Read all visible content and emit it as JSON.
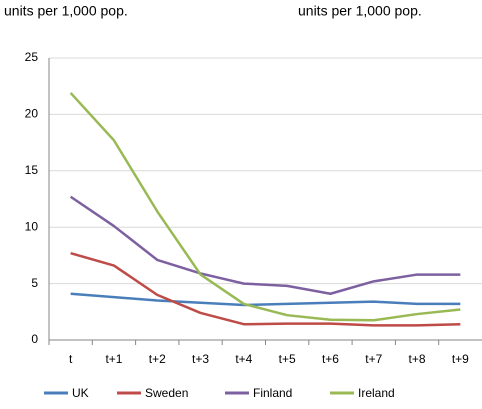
{
  "chart_data": {
    "type": "line",
    "annotations": [
      "units per 1,000 pop.",
      "units per 1,000 pop."
    ],
    "categories": [
      "t",
      "t+1",
      "t+2",
      "t+3",
      "t+4",
      "t+5",
      "t+6",
      "t+7",
      "t+8",
      "t+9"
    ],
    "series": [
      {
        "name": "UK",
        "color": "#4a7ebb",
        "values": [
          4.1,
          3.8,
          3.5,
          3.3,
          3.1,
          3.2,
          3.3,
          3.4,
          3.2,
          3.2
        ]
      },
      {
        "name": "Sweden",
        "color": "#be4b48",
        "values": [
          7.7,
          6.6,
          4.0,
          2.4,
          1.4,
          1.45,
          1.45,
          1.3,
          1.3,
          1.4
        ]
      },
      {
        "name": "Finland",
        "color": "#7d60a0",
        "values": [
          12.7,
          10.1,
          7.1,
          5.9,
          5.0,
          4.8,
          4.1,
          5.2,
          5.8,
          5.8
        ]
      },
      {
        "name": "Ireland",
        "color": "#98b954",
        "values": [
          21.9,
          17.7,
          11.4,
          5.8,
          3.2,
          2.2,
          1.8,
          1.75,
          2.3,
          2.7
        ]
      }
    ],
    "ylim": [
      0,
      25
    ],
    "yticks": [
      0,
      5,
      10,
      15,
      20,
      25
    ],
    "grid": true,
    "legend": "bottom"
  }
}
